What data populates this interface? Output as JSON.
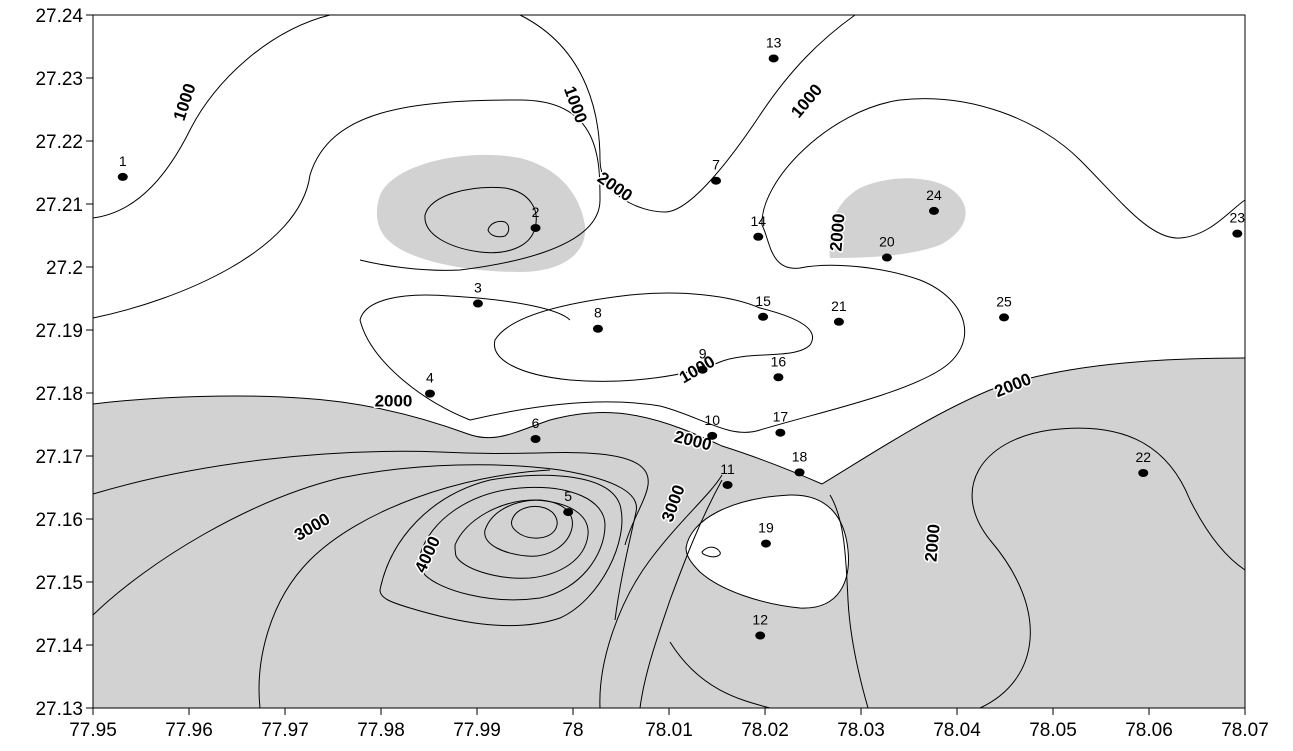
{
  "chart_data": {
    "type": "contour",
    "xlim": [
      77.95,
      78.07
    ],
    "ylim": [
      27.13,
      27.24
    ],
    "x_ticks": [
      "77.95",
      "77.96",
      "77.97",
      "77.98",
      "77.99",
      "78",
      "78.01",
      "78.02",
      "78.03",
      "78.04",
      "78.05",
      "78.06",
      "78.07"
    ],
    "y_ticks": [
      "27.13",
      "27.14",
      "27.15",
      "27.16",
      "27.17",
      "27.18",
      "27.19",
      "27.2",
      "27.21",
      "27.22",
      "27.23",
      "27.24"
    ],
    "shading": "regions above 2000 shaded light grey",
    "shade_color": "#d2d2d2",
    "contour_labels": [
      {
        "text": "1000",
        "x": 77.9595,
        "y": 27.2262,
        "angle": -72
      },
      {
        "text": "1000",
        "x": 78.0003,
        "y": 27.2258,
        "angle": 70
      },
      {
        "text": "1000",
        "x": 78.0243,
        "y": 27.2264,
        "angle": -50
      },
      {
        "text": "1000",
        "x": 78.0129,
        "y": 27.1838,
        "angle": -30
      },
      {
        "text": "2000",
        "x": 78.0044,
        "y": 27.2128,
        "angle": 35
      },
      {
        "text": "2000",
        "x": 78.0275,
        "y": 27.2055,
        "angle": -85
      },
      {
        "text": "2000",
        "x": 77.9813,
        "y": 27.1788,
        "angle": 0
      },
      {
        "text": "2000",
        "x": 78.0125,
        "y": 27.1725,
        "angle": 14
      },
      {
        "text": "2000",
        "x": 78.0458,
        "y": 27.1813,
        "angle": -22
      },
      {
        "text": "2000",
        "x": 78.0374,
        "y": 27.1562,
        "angle": -85
      },
      {
        "text": "3000",
        "x": 77.9728,
        "y": 27.1588,
        "angle": -30
      },
      {
        "text": "3000",
        "x": 78.0104,
        "y": 27.1625,
        "angle": -70
      },
      {
        "text": "4000",
        "x": 77.9848,
        "y": 27.1544,
        "angle": -65
      }
    ],
    "stations": [
      {
        "label": "1",
        "x": 77.9531,
        "y": 27.2143
      },
      {
        "label": "2",
        "x": 77.9961,
        "y": 27.2062
      },
      {
        "label": "3",
        "x": 77.9901,
        "y": 27.1942
      },
      {
        "label": "4",
        "x": 77.9851,
        "y": 27.1799
      },
      {
        "label": "5",
        "x": 77.9995,
        "y": 27.1611
      },
      {
        "label": "6",
        "x": 77.9961,
        "y": 27.1727
      },
      {
        "label": "7",
        "x": 78.0149,
        "y": 27.2137
      },
      {
        "label": "8",
        "x": 78.0026,
        "y": 27.1902
      },
      {
        "label": "9",
        "x": 78.0135,
        "y": 27.1837
      },
      {
        "label": "10",
        "x": 78.0145,
        "y": 27.1732
      },
      {
        "label": "11",
        "x": 78.0161,
        "y": 27.1654
      },
      {
        "label": "12",
        "x": 78.0195,
        "y": 27.1415
      },
      {
        "label": "13",
        "x": 78.0209,
        "y": 27.2331
      },
      {
        "label": "14",
        "x": 78.0193,
        "y": 27.2048
      },
      {
        "label": "15",
        "x": 78.0198,
        "y": 27.1921
      },
      {
        "label": "16",
        "x": 78.0214,
        "y": 27.1825
      },
      {
        "label": "17",
        "x": 78.0216,
        "y": 27.1737
      },
      {
        "label": "18",
        "x": 78.0236,
        "y": 27.1674
      },
      {
        "label": "19",
        "x": 78.0201,
        "y": 27.1561
      },
      {
        "label": "20",
        "x": 78.0327,
        "y": 27.2015
      },
      {
        "label": "21",
        "x": 78.0277,
        "y": 27.1913
      },
      {
        "label": "22",
        "x": 78.0594,
        "y": 27.1673
      },
      {
        "label": "23",
        "x": 78.0692,
        "y": 27.2053
      },
      {
        "label": "24",
        "x": 78.0376,
        "y": 27.2089
      },
      {
        "label": "25",
        "x": 78.0449,
        "y": 27.192
      }
    ]
  }
}
